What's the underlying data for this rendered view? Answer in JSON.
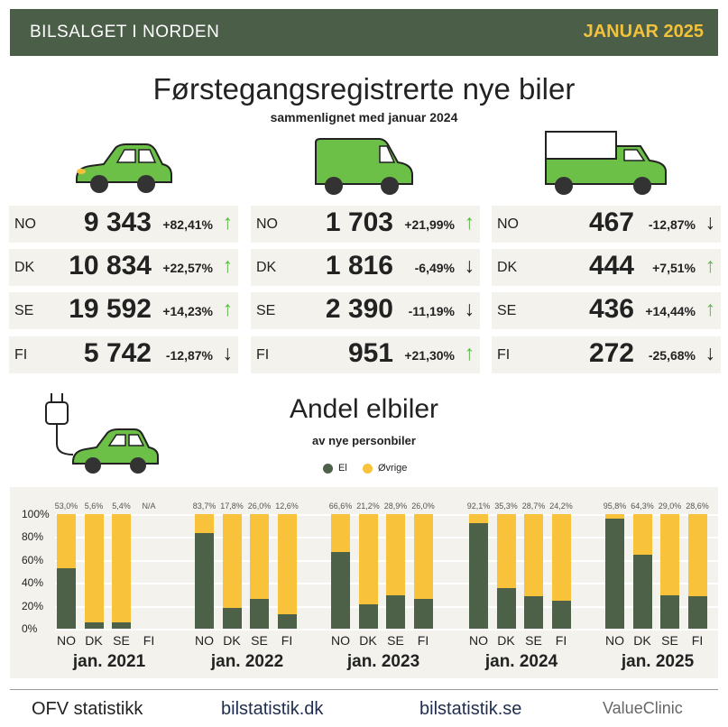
{
  "header": {
    "left": "BILSALGET I NORDEN",
    "right": "JANUAR 2025"
  },
  "title": "Førstegangsregistrerte nye biler",
  "subtitle": "sammenlignet med januar 2024",
  "colors": {
    "green_dark": "#4d6149",
    "yellow": "#f8c23a",
    "arrow_up": "#5cb84a",
    "vehicle": "#6cbf47"
  },
  "tables": [
    {
      "icon": "car-icon",
      "rows": [
        {
          "country": "NO",
          "value": "9 343",
          "change": "+82,41%",
          "dir": "up"
        },
        {
          "country": "DK",
          "value": "10 834",
          "change": "+22,57%",
          "dir": "up"
        },
        {
          "country": "SE",
          "value": "19 592",
          "change": "+14,23%",
          "dir": "up"
        },
        {
          "country": "FI",
          "value": "5 742",
          "change": "-12,87%",
          "dir": "down"
        }
      ]
    },
    {
      "icon": "van-icon",
      "rows": [
        {
          "country": "NO",
          "value": "1 703",
          "change": "+21,99%",
          "dir": "up"
        },
        {
          "country": "DK",
          "value": "1 816",
          "change": "-6,49%",
          "dir": "down"
        },
        {
          "country": "SE",
          "value": "2 390",
          "change": "-11,19%",
          "dir": "down"
        },
        {
          "country": "FI",
          "value": "951",
          "change": "+21,30%",
          "dir": "up"
        }
      ]
    },
    {
      "icon": "truck-icon",
      "rows": [
        {
          "country": "NO",
          "value": "467",
          "change": "-12,87%",
          "dir": "down"
        },
        {
          "country": "DK",
          "value": "444",
          "change": "+7,51%",
          "dir": "up"
        },
        {
          "country": "SE",
          "value": "436",
          "change": "+14,44%",
          "dir": "up"
        },
        {
          "country": "FI",
          "value": "272",
          "change": "-25,68%",
          "dir": "down"
        }
      ]
    }
  ],
  "arrows": {
    "up": "↑",
    "down": "↓"
  },
  "chart_data": {
    "type": "bar",
    "stacked": true,
    "title": "Andel elbiler",
    "subtitle": "av nye personbiler",
    "legend": [
      {
        "name": "El",
        "color": "#4d6149"
      },
      {
        "name": "Øvrige",
        "color": "#f8c23a"
      }
    ],
    "legend_position": "top-center",
    "yticks": [
      "100%",
      "80%",
      "60%",
      "40%",
      "20%",
      "0%"
    ],
    "ylim": [
      0,
      100
    ],
    "groups": [
      {
        "label": "jan. 2021",
        "categories": [
          "NO",
          "DK",
          "SE",
          "FI"
        ],
        "el": [
          53.0,
          5.6,
          5.4,
          null
        ],
        "labels": [
          "53,0%",
          "5,6%",
          "5,4%",
          "N/A"
        ]
      },
      {
        "label": "jan. 2022",
        "categories": [
          "NO",
          "DK",
          "SE",
          "FI"
        ],
        "el": [
          83.7,
          17.8,
          26.0,
          12.6
        ],
        "labels": [
          "83,7%",
          "17,8%",
          "26,0%",
          "12,6%"
        ]
      },
      {
        "label": "jan. 2023",
        "categories": [
          "NO",
          "DK",
          "SE",
          "FI"
        ],
        "el": [
          66.6,
          21.2,
          28.9,
          26.0
        ],
        "labels": [
          "66,6%",
          "21,2%",
          "28,9%",
          "26,0%"
        ]
      },
      {
        "label": "jan. 2024",
        "categories": [
          "NO",
          "DK",
          "SE",
          "FI"
        ],
        "el": [
          92.1,
          35.3,
          28.7,
          24.2
        ],
        "labels": [
          "92,1%",
          "35,3%",
          "28,7%",
          "24,2%"
        ]
      },
      {
        "label": "jan. 2025",
        "categories": [
          "NO",
          "DK",
          "SE",
          "FI"
        ],
        "el": [
          95.8,
          64.3,
          29.0,
          28.6
        ],
        "labels": [
          "95,8%",
          "64,3%",
          "29,0%",
          "28,6%"
        ]
      }
    ]
  },
  "footer": [
    "OFV statistikk",
    "bilstatistik.dk",
    "bilstatistik.se",
    "ValueClinic"
  ]
}
